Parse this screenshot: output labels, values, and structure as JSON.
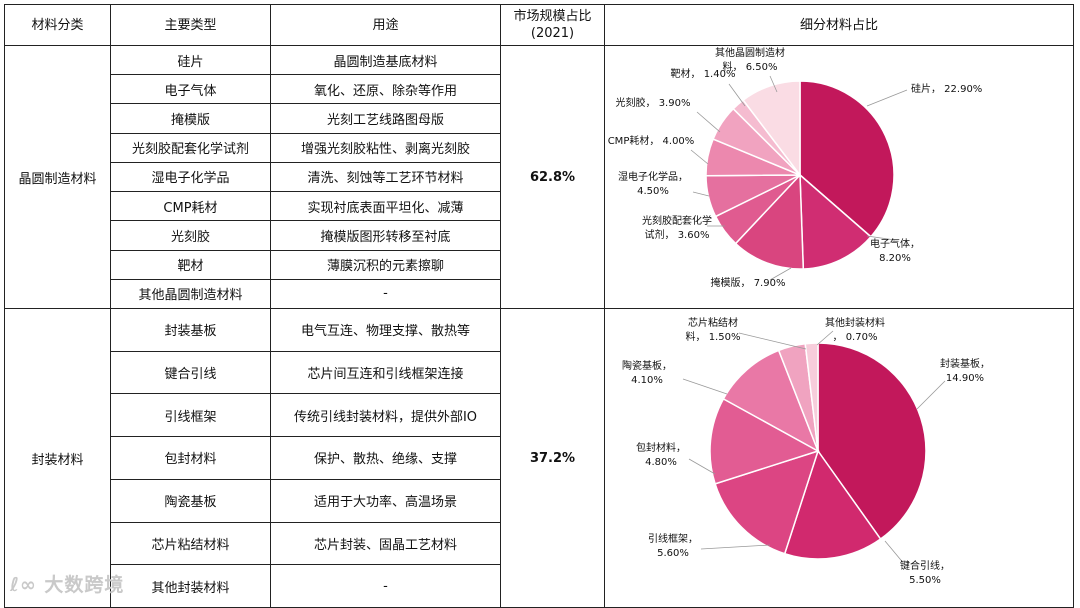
{
  "headers": [
    "材料分类",
    "主要类型",
    "用途",
    "市场规模占比\n(2021)",
    "细分材料占比"
  ],
  "groups": [
    {
      "category": "晶圆制造材料",
      "share": "62.8%",
      "rows": [
        {
          "type": "硅片",
          "use": "晶圆制造基底材料"
        },
        {
          "type": "电子气体",
          "use": "氧化、还原、除杂等作用"
        },
        {
          "type": "掩模版",
          "use": "光刻工艺线路图母版"
        },
        {
          "type": "光刻胶配套化学试剂",
          "use": "增强光刻胶粘性、剥离光刻胶"
        },
        {
          "type": "湿电子化学品",
          "use": "清洗、刻蚀等工艺环节材料"
        },
        {
          "type": "CMP耗材",
          "use": "实现衬底表面平坦化、减薄"
        },
        {
          "type": "光刻胶",
          "use": "掩模版图形转移至衬底"
        },
        {
          "type": "靶材",
          "use": "薄膜沉积的元素擦聊"
        },
        {
          "type": "其他晶圆制造材料",
          "use": "-"
        }
      ]
    },
    {
      "category": "封装材料",
      "share": "37.2%",
      "rows": [
        {
          "type": "封装基板",
          "use": "电气互连、物理支撑、散热等"
        },
        {
          "type": "键合引线",
          "use": "芯片间互连和引线框架连接"
        },
        {
          "type": "引线框架",
          "use": "传统引线封装材料，提供外部IO"
        },
        {
          "type": "包封材料",
          "use": "保护、散热、绝缘、支撑"
        },
        {
          "type": "陶瓷基板",
          "use": "适用于大功率、高温场景"
        },
        {
          "type": "芯片粘结材料",
          "use": "芯片封装、固晶工艺材料"
        },
        {
          "type": "其他封装材料",
          "use": "-"
        }
      ]
    }
  ],
  "chart_data": [
    {
      "type": "pie",
      "title": "",
      "slices": [
        {
          "label": "硅片",
          "value": 22.9,
          "display": "22.90%",
          "color": "#c2185b"
        },
        {
          "label": "电子气体",
          "value": 8.2,
          "display": "8.20%",
          "color": "#d02d72"
        },
        {
          "label": "掩模版",
          "value": 7.9,
          "display": "7.90%",
          "color": "#d9457f"
        },
        {
          "label": "光刻胶配套化学试剂",
          "value": 3.6,
          "display": "3.60%",
          "color": "#e05b90"
        },
        {
          "label": "湿电子化学品",
          "value": 4.5,
          "display": "4.50%",
          "color": "#e5709f"
        },
        {
          "label": "CMP耗材",
          "value": 4.0,
          "display": "4.00%",
          "color": "#ec88ae"
        },
        {
          "label": "光刻胶",
          "value": 3.9,
          "display": "3.90%",
          "color": "#f1a3c0"
        },
        {
          "label": "靶材",
          "value": 1.4,
          "display": "1.40%",
          "color": "#f5bcd0"
        },
        {
          "label": "其他晶圆制造材料",
          "value": 6.5,
          "display": "6.50%",
          "color": "#fadce4"
        }
      ]
    },
    {
      "type": "pie",
      "title": "",
      "slices": [
        {
          "label": "封装基板",
          "value": 14.9,
          "display": "14.90%",
          "color": "#c2185b"
        },
        {
          "label": "键合引线",
          "value": 5.5,
          "display": "5.50%",
          "color": "#d1296e"
        },
        {
          "label": "引线框架",
          "value": 5.6,
          "display": "5.60%",
          "color": "#dc4583"
        },
        {
          "label": "包封材料",
          "value": 4.8,
          "display": "4.80%",
          "color": "#e25c93"
        },
        {
          "label": "陶瓷基板",
          "value": 4.1,
          "display": "4.10%",
          "color": "#e978a6"
        },
        {
          "label": "芯片粘结材料",
          "value": 1.5,
          "display": "1.50%",
          "color": "#f0a3c0"
        },
        {
          "label": "其他封装材料",
          "value": 0.7,
          "display": "0.70%",
          "color": "#f7cddb"
        }
      ]
    }
  ],
  "watermark": "大数跨境"
}
